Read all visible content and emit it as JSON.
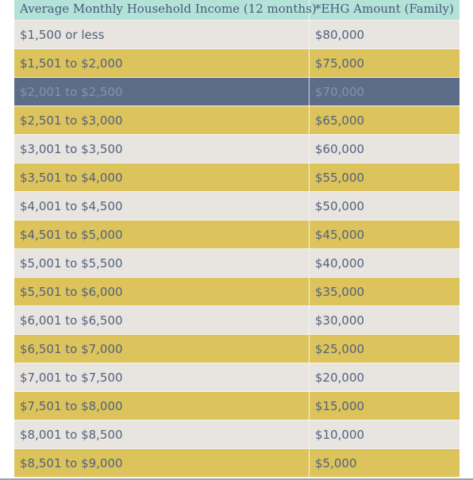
{
  "table": {
    "headers": {
      "income": "Average Monthly Household Income (12 months)",
      "amount": "*EHG Amount (Family)"
    },
    "rows": [
      {
        "income": "$1,500 or less",
        "amount": "$80,000"
      },
      {
        "income": "$1,501 to $2,000",
        "amount": "$75,000"
      },
      {
        "income": "$2,001 to $2,500",
        "amount": "$70,000"
      },
      {
        "income": "$2,501 to $3,000",
        "amount": "$65,000"
      },
      {
        "income": "$3,001 to $3,500",
        "amount": "$60,000"
      },
      {
        "income": "$3,501 to $4,000",
        "amount": "$55,000"
      },
      {
        "income": "$4,001 to $4,500",
        "amount": "$50,000"
      },
      {
        "income": "$4,501 to $5,000",
        "amount": "$45,000"
      },
      {
        "income": "$5,001 to $5,500",
        "amount": "$40,000"
      },
      {
        "income": "$5,501 to $6,000",
        "amount": "$35,000"
      },
      {
        "income": "$6,001 to $6,500",
        "amount": "$30,000"
      },
      {
        "income": "$6,501 to $7,000",
        "amount": "$25,000"
      },
      {
        "income": "$7,001 to $7,500",
        "amount": "$20,000"
      },
      {
        "income": "$7,501 to $8,000",
        "amount": "$15,000"
      },
      {
        "income": "$8,001 to $8,500",
        "amount": "$10,000"
      },
      {
        "income": "$8,501 to $9,000",
        "amount": "$5,000"
      }
    ]
  },
  "colors": {
    "header_bg": "#b2e2d8",
    "row_light": "#e8e5e1",
    "row_gold": "#dcc35c",
    "row_selected": "#5d6c89",
    "text": "#53617d"
  }
}
